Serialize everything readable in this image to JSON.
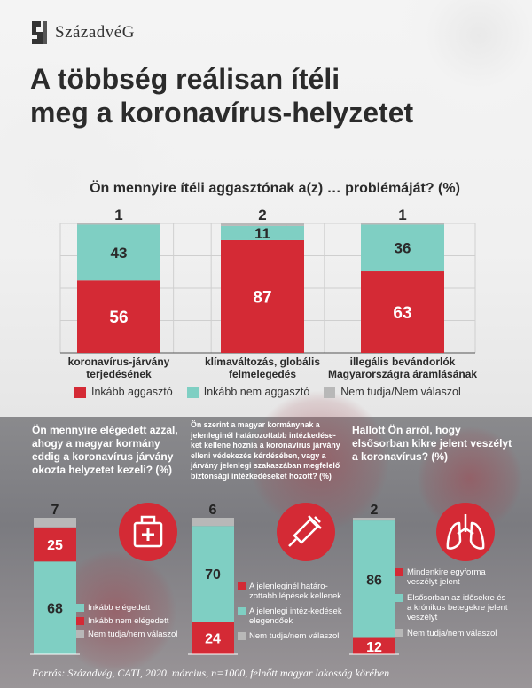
{
  "logo": {
    "name": "SzázadvéG",
    "icon": "szazadveg-logo-icon"
  },
  "title": {
    "line1": "A többség reálisan ítéli",
    "line2": "meg a koronavírus-helyzetet"
  },
  "colors": {
    "red": "#d42a35",
    "teal": "#7fcfc3",
    "grey": "#b8b8b8"
  },
  "main_question": "Ön mennyire ítéli aggasztónak a(z) … problémáját? (%)",
  "legend_main": [
    {
      "label": "Inkább aggasztó",
      "color": "#d42a35"
    },
    {
      "label": "Inkább nem aggasztó",
      "color": "#7fcfc3"
    },
    {
      "label": "Nem tudja/Nem válaszol",
      "color": "#b8b8b8"
    }
  ],
  "sub_questions": {
    "q1": "Ön mennyire elégedett azzal, ahogy a magyar kormány eddig a koronavírus járvány okozta helyzetet kezeli? (%)",
    "q2": "Ön szerint a magyar kormánynak a jelenleginél határozottabb intézkedése-ket kellene hoznia a koronavírus járvány elleni védekezés kérdésében, vagy a járvány jelenlegi szakaszában megfelelő biztonsági intézkedéseket hozott? (%)",
    "q3": "Hallott Ön arról, hogy elsősorban kikre jelent veszélyt a koronavírus? (%)"
  },
  "legend_q1": [
    {
      "label": "Inkább elégedett",
      "color": "#7fcfc3"
    },
    {
      "label": "Inkább nem elégedett",
      "color": "#d42a35"
    },
    {
      "label": "Nem tudja/nem válaszol",
      "color": "#b8b8b8"
    }
  ],
  "legend_q2": [
    {
      "label": "A jelenleginél határo-zottabb lépések kellenek",
      "color": "#d42a35"
    },
    {
      "label": "A jelenlegi intéz-kedések elegendőek",
      "color": "#7fcfc3"
    },
    {
      "label": "Nem tudja/nem válaszol",
      "color": "#b8b8b8"
    }
  ],
  "legend_q3": [
    {
      "label": "Mindenkire egyforma veszélyt jelent",
      "color": "#d42a35"
    },
    {
      "label": "Elsősorban az idősekre és a krónikus betegekre jelent veszélyt",
      "color": "#7fcfc3"
    },
    {
      "label": "Nem tudja/nem válaszol",
      "color": "#b8b8b8"
    }
  ],
  "icons": [
    "medical-bag-icon",
    "syringe-icon",
    "lungs-icon"
  ],
  "source": "Forrás: Századvég, CATI, 2020. március, n=1000, felnőtt magyar lakosság körében",
  "chart_data": [
    {
      "type": "bar",
      "stacked": true,
      "title": "Ön mennyire ítéli aggasztónak a(z) … problémáját? (%)",
      "categories": [
        "koronavírus-járvány terjedésének",
        "klímaváltozás, globális felmelegedés",
        "illegális bevándorlók Magyarországra áramlásának"
      ],
      "series": [
        {
          "name": "Inkább aggasztó",
          "values": [
            56,
            87,
            63
          ]
        },
        {
          "name": "Inkább nem aggasztó",
          "values": [
            43,
            11,
            36
          ]
        },
        {
          "name": "Nem tudja/Nem válaszol",
          "values": [
            1,
            2,
            1
          ]
        }
      ],
      "ylim": [
        0,
        100
      ],
      "grid": true
    },
    {
      "type": "bar",
      "stacked": true,
      "title": "Ön mennyire elégedett azzal, ahogy a magyar kormány eddig a koronavírus járvány okozta helyzetet kezeli? (%)",
      "series": [
        {
          "name": "Inkább elégedett",
          "values": [
            68
          ]
        },
        {
          "name": "Inkább nem elégedett",
          "values": [
            25
          ]
        },
        {
          "name": "Nem tudja/nem válaszol",
          "values": [
            7
          ]
        }
      ]
    },
    {
      "type": "bar",
      "stacked": true,
      "title": "Ön szerint a magyar kormánynak a jelenleginél határozottabb intézkedéseket kellene hoznia a koronavírus járvány elleni védekezés kérdésében, vagy a járvány jelenlegi szakaszában megfelelő biztonsági intézkedéseket hozott? (%)",
      "series": [
        {
          "name": "A jelenleginél határozottabb lépések kellenek",
          "values": [
            24
          ]
        },
        {
          "name": "A jelenlegi intézkedések elegendőek",
          "values": [
            70
          ]
        },
        {
          "name": "Nem tudja/nem válaszol",
          "values": [
            6
          ]
        }
      ]
    },
    {
      "type": "bar",
      "stacked": true,
      "title": "Hallott Ön arról, hogy elsősorban kikre jelent veszélyt a koronavírus? (%)",
      "series": [
        {
          "name": "Mindenkire egyforma veszélyt jelent",
          "values": [
            12
          ]
        },
        {
          "name": "Elsősorban az idősekre és a krónikus betegekre jelent veszélyt",
          "values": [
            86
          ]
        },
        {
          "name": "Nem tudja/nem válaszol",
          "values": [
            2
          ]
        }
      ]
    }
  ]
}
